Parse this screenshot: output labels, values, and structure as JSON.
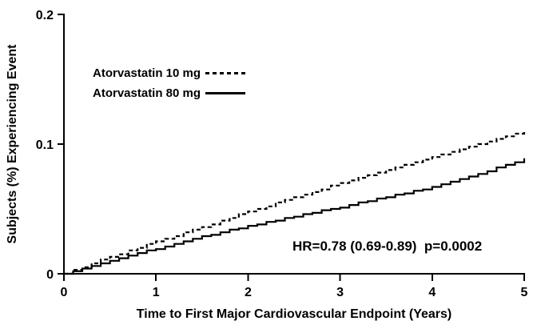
{
  "chart_data": {
    "type": "line",
    "title": "",
    "xlabel": "Time to First Major Cardiovascular Endpoint (Years)",
    "ylabel": "Subjects (%) Experiencing Event",
    "xlim": [
      0,
      5
    ],
    "ylim": [
      0,
      0.2
    ],
    "grid": false,
    "legend_position": "upper-left-inside",
    "annotation": "HR=0.78 (0.69-0.89)  p=0.0002",
    "x_ticks": [
      {
        "value": 0,
        "label": "0"
      },
      {
        "value": 1,
        "label": "1"
      },
      {
        "value": 2,
        "label": "2"
      },
      {
        "value": 3,
        "label": "3"
      },
      {
        "value": 4,
        "label": "4"
      },
      {
        "value": 5,
        "label": "5"
      }
    ],
    "y_ticks": [
      {
        "value": 0,
        "label": "0"
      },
      {
        "value": 0.1,
        "label": "0.1"
      },
      {
        "value": 0.2,
        "label": "0.2"
      }
    ],
    "x": [
      0,
      0.1,
      0.2,
      0.3,
      0.4,
      0.5,
      0.6,
      0.7,
      0.8,
      0.9,
      1.0,
      1.1,
      1.2,
      1.3,
      1.4,
      1.5,
      1.6,
      1.7,
      1.8,
      1.9,
      2.0,
      2.1,
      2.2,
      2.3,
      2.4,
      2.5,
      2.6,
      2.7,
      2.8,
      2.9,
      3.0,
      3.1,
      3.2,
      3.3,
      3.4,
      3.5,
      3.6,
      3.7,
      3.8,
      3.9,
      4.0,
      4.1,
      4.2,
      4.3,
      4.4,
      4.5,
      4.6,
      4.7,
      4.8,
      4.9,
      5.0
    ],
    "series": [
      {
        "name": "Atorvastatin 10 mg",
        "style": "dashed",
        "color": "#000000",
        "y": [
          0,
          0.003,
          0.005,
          0.008,
          0.011,
          0.013,
          0.015,
          0.018,
          0.02,
          0.023,
          0.025,
          0.027,
          0.029,
          0.032,
          0.034,
          0.036,
          0.038,
          0.041,
          0.043,
          0.046,
          0.048,
          0.05,
          0.052,
          0.055,
          0.057,
          0.059,
          0.061,
          0.063,
          0.065,
          0.068,
          0.07,
          0.072,
          0.074,
          0.076,
          0.078,
          0.08,
          0.082,
          0.084,
          0.086,
          0.088,
          0.09,
          0.092,
          0.094,
          0.096,
          0.098,
          0.1,
          0.102,
          0.104,
          0.106,
          0.108,
          0.11
        ]
      },
      {
        "name": "Atorvastatin 80 mg",
        "style": "solid",
        "color": "#000000",
        "y": [
          0,
          0.002,
          0.004,
          0.006,
          0.008,
          0.01,
          0.012,
          0.014,
          0.016,
          0.018,
          0.019,
          0.021,
          0.023,
          0.025,
          0.027,
          0.029,
          0.03,
          0.032,
          0.034,
          0.035,
          0.037,
          0.038,
          0.04,
          0.041,
          0.043,
          0.044,
          0.046,
          0.047,
          0.049,
          0.05,
          0.051,
          0.053,
          0.055,
          0.056,
          0.058,
          0.059,
          0.061,
          0.062,
          0.064,
          0.065,
          0.067,
          0.069,
          0.071,
          0.073,
          0.075,
          0.077,
          0.079,
          0.082,
          0.084,
          0.086,
          0.089
        ]
      }
    ]
  }
}
